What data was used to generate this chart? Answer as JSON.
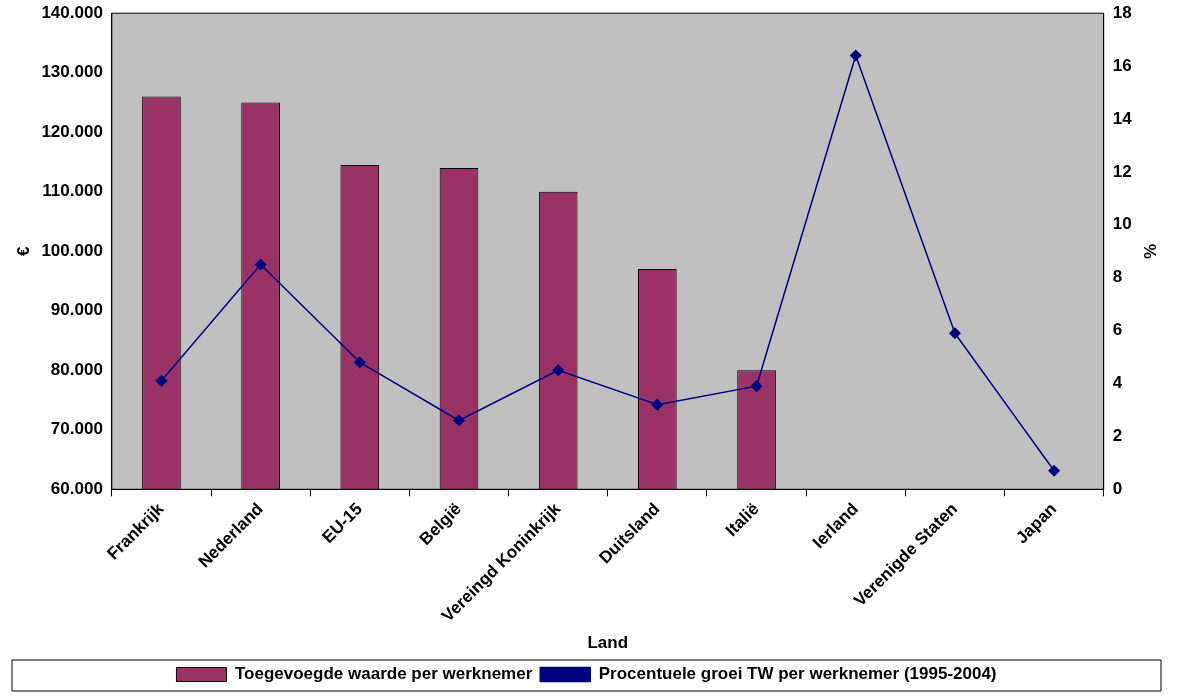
{
  "chart_data": {
    "type": "bar",
    "xlabel": "Land",
    "ylabel": "€",
    "y2label": "%",
    "categories": [
      "Frankrijk",
      "Nederland",
      "EU-15",
      "België",
      "Vereingd Koninkrijk",
      "Duitsland",
      "Italië",
      "Ierland",
      "Verenigde Staten",
      "Japan"
    ],
    "series": [
      {
        "name": "Toegevoegde waarde per werknemer",
        "color": "#993366",
        "values": [
          126000,
          125000,
          114500,
          114000,
          110000,
          97000,
          80000,
          null,
          null,
          null
        ]
      },
      {
        "name": "Procentuele groei TW per werknemer (1995-2004)",
        "type": "line",
        "axis": "y2",
        "color": "#000080",
        "marker": "diamond",
        "values": [
          4.1,
          8.5,
          4.8,
          2.6,
          4.5,
          3.2,
          3.9,
          16.4,
          5.9,
          0.7
        ]
      }
    ],
    "ylim": [
      60000,
      140000
    ],
    "yticks": [
      {
        "value": 60000,
        "label": "60.000"
      },
      {
        "value": 70000,
        "label": "70.000"
      },
      {
        "value": 80000,
        "label": "80.000"
      },
      {
        "value": 90000,
        "label": "90.000"
      },
      {
        "value": 100000,
        "label": "100.000"
      },
      {
        "value": 110000,
        "label": "110.000"
      },
      {
        "value": 120000,
        "label": "120.000"
      },
      {
        "value": 130000,
        "label": "130.000"
      },
      {
        "value": 140000,
        "label": "140.000"
      }
    ],
    "y2lim": [
      0,
      18
    ],
    "y2ticks": [
      0,
      2,
      4,
      6,
      8,
      10,
      12,
      14,
      16,
      18
    ],
    "grid": false,
    "legend": "bottom"
  }
}
